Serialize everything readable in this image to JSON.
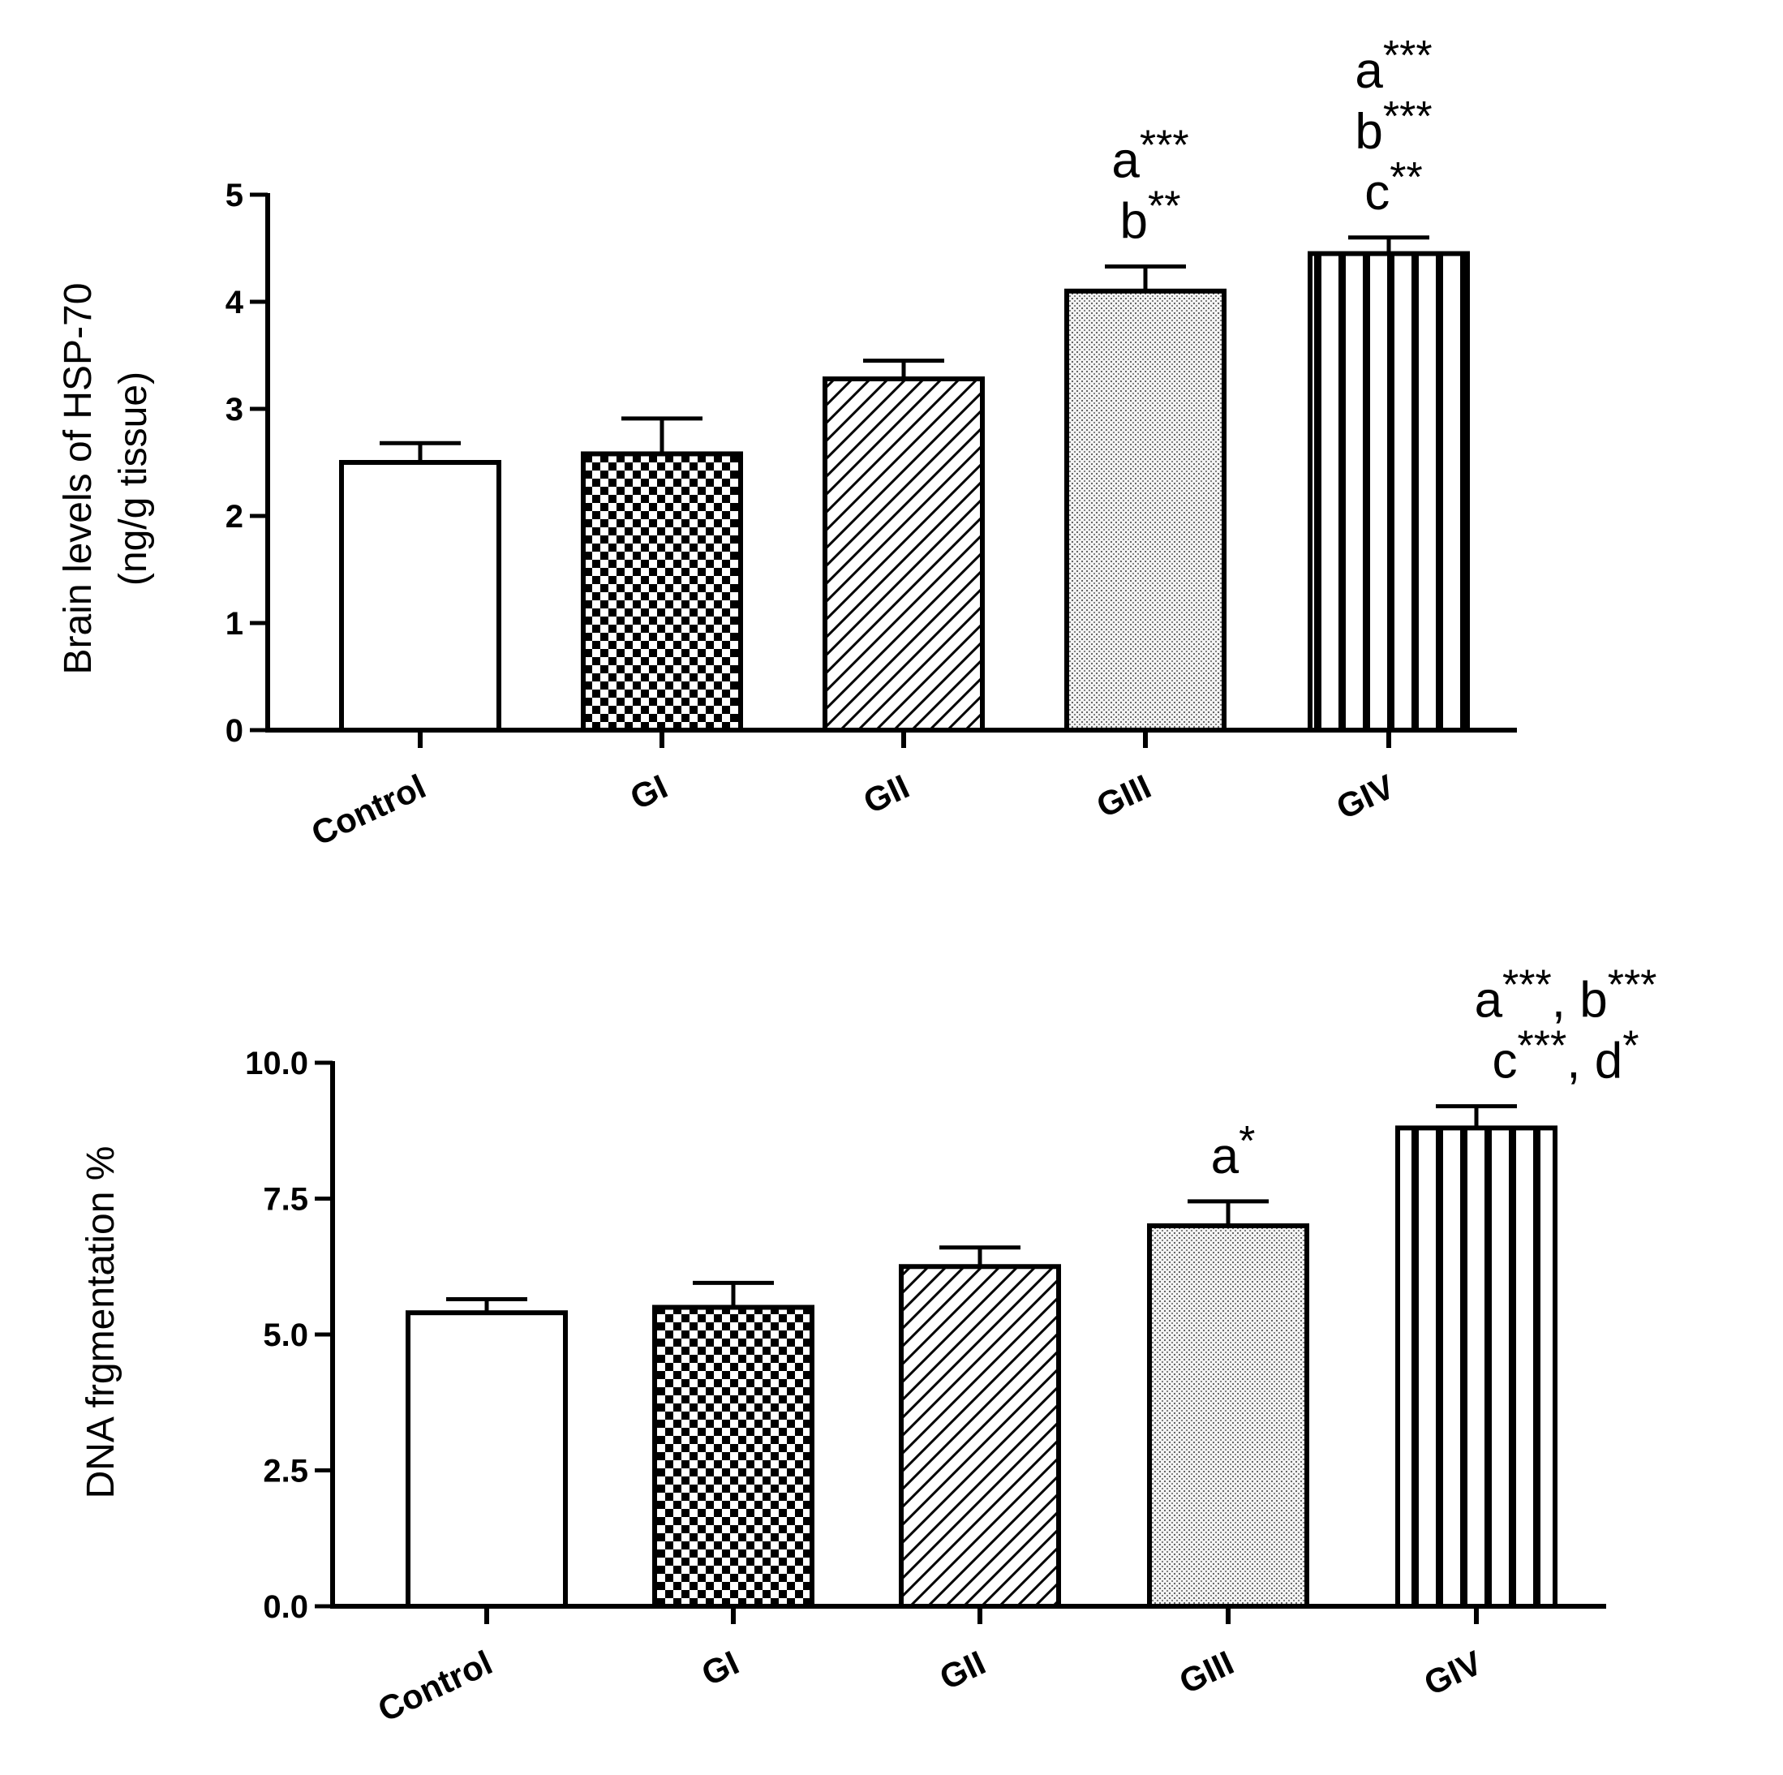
{
  "chart_data": [
    {
      "type": "bar",
      "categories": [
        "Control",
        "GI",
        "GII",
        "GIII",
        "GIV"
      ],
      "values": [
        2.5,
        2.58,
        3.28,
        4.1,
        4.45
      ],
      "errors": [
        0.18,
        0.33,
        0.17,
        0.23,
        0.15
      ],
      "ylabel_line1": "Brain levels of HSP-70",
      "ylabel_line2": "(ng/g tissue)",
      "ylim": [
        0,
        5
      ],
      "yticks": [
        "0",
        "1",
        "2",
        "3",
        "4",
        "5"
      ],
      "annotations": [
        [],
        [],
        [],
        [
          {
            "letter": "a",
            "stars": "***"
          },
          {
            "letter": "b",
            "stars": "**"
          }
        ],
        [
          {
            "letter": "a",
            "stars": "***"
          },
          {
            "letter": "b",
            "stars": "***"
          },
          {
            "letter": "c",
            "stars": "**"
          }
        ]
      ]
    },
    {
      "type": "bar",
      "categories": [
        "Control",
        "GI",
        "GII",
        "GIII",
        "GIV"
      ],
      "values": [
        5.4,
        5.5,
        6.25,
        7.0,
        8.8
      ],
      "errors": [
        0.25,
        0.45,
        0.35,
        0.45,
        0.4
      ],
      "ylabel_line1": "DNA frgmentation %",
      "ylabel_line2": "",
      "ylim": [
        0,
        10
      ],
      "yticks": [
        "0.0",
        "2.5",
        "5.0",
        "7.5",
        "10.0"
      ],
      "annotations": [
        [],
        [],
        [],
        [
          {
            "letter": "a",
            "stars": "*"
          }
        ],
        [
          {
            "letter": "a",
            "stars": "***",
            "sep": ", "
          },
          {
            "letter": "b",
            "stars": "***"
          },
          {
            "letter": "c",
            "stars": "***",
            "sep": ", "
          },
          {
            "letter": "d",
            "stars": "*"
          }
        ]
      ]
    }
  ]
}
